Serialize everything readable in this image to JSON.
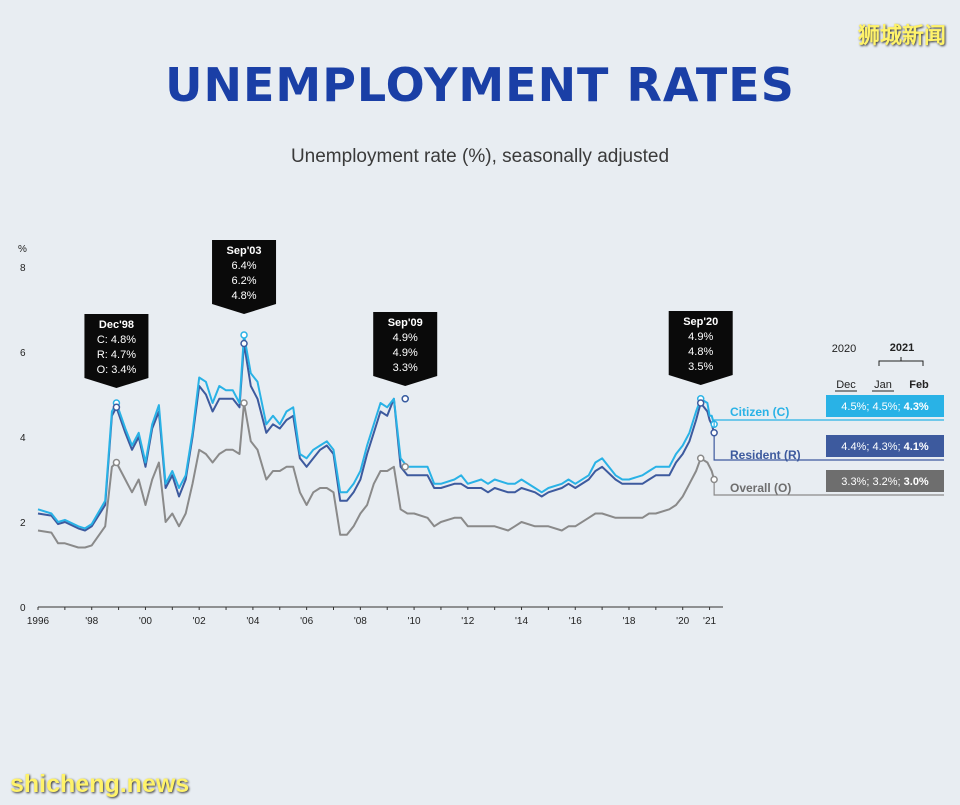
{
  "header": {
    "title": "UNEMPLOYMENT RATES",
    "subtitle": "Unemployment rate (%), seasonally adjusted",
    "watermark_top": "狮城新闻",
    "watermark_bottom": "shicheng.news"
  },
  "colors": {
    "citizen": "#29b2e6",
    "resident": "#3d5a9e",
    "overall": "#8a8a8a",
    "callout_bg": "#0a0a0a",
    "title": "#1a3fa6",
    "background": "#e8edf2"
  },
  "chart_data": {
    "type": "line",
    "title": "Unemployment rate (%), seasonally adjusted",
    "ylabel": "%",
    "ylim": [
      0,
      8
    ],
    "yticks": [
      0,
      2,
      4,
      6,
      8
    ],
    "xlim": [
      1996,
      2021.5
    ],
    "xticks": [
      {
        "value": 1996,
        "label": "1996"
      },
      {
        "value": 1998,
        "label": "'98"
      },
      {
        "value": 2000,
        "label": "'00"
      },
      {
        "value": 2002,
        "label": "'02"
      },
      {
        "value": 2004,
        "label": "'04"
      },
      {
        "value": 2006,
        "label": "'06"
      },
      {
        "value": 2008,
        "label": "'08"
      },
      {
        "value": 2010,
        "label": "'10"
      },
      {
        "value": 2012,
        "label": "'12"
      },
      {
        "value": 2014,
        "label": "'14"
      },
      {
        "value": 2016,
        "label": "'16"
      },
      {
        "value": 2018,
        "label": "'18"
      },
      {
        "value": 2020,
        "label": "'20"
      },
      {
        "value": 2021,
        "label": "'21"
      }
    ],
    "series": [
      {
        "name": "Citizen (C)",
        "color": "#29b2e6",
        "label_values": "4.5%; 4.5%; 4.3%",
        "points": [
          [
            1996,
            2.3
          ],
          [
            1996.5,
            2.2
          ],
          [
            1996.75,
            2.0
          ],
          [
            1997,
            2.05
          ],
          [
            1997.5,
            1.9
          ],
          [
            1997.75,
            1.85
          ],
          [
            1998,
            1.95
          ],
          [
            1998.5,
            2.5
          ],
          [
            1998.75,
            4.6
          ],
          [
            1998.92,
            4.8
          ],
          [
            1999.25,
            4.2
          ],
          [
            1999.5,
            3.8
          ],
          [
            1999.75,
            4.1
          ],
          [
            2000,
            3.4
          ],
          [
            2000.25,
            4.3
          ],
          [
            2000.5,
            4.75
          ],
          [
            2000.75,
            2.9
          ],
          [
            2001,
            3.2
          ],
          [
            2001.25,
            2.8
          ],
          [
            2001.5,
            3.1
          ],
          [
            2001.75,
            4.1
          ],
          [
            2002,
            5.4
          ],
          [
            2002.25,
            5.3
          ],
          [
            2002.5,
            4.8
          ],
          [
            2002.75,
            5.2
          ],
          [
            2003,
            5.1
          ],
          [
            2003.25,
            5.1
          ],
          [
            2003.5,
            4.8
          ],
          [
            2003.67,
            6.4
          ],
          [
            2003.92,
            5.5
          ],
          [
            2004.17,
            5.3
          ],
          [
            2004.5,
            4.3
          ],
          [
            2004.75,
            4.5
          ],
          [
            2005,
            4.3
          ],
          [
            2005.25,
            4.6
          ],
          [
            2005.5,
            4.7
          ],
          [
            2005.75,
            3.6
          ],
          [
            2006,
            3.5
          ],
          [
            2006.25,
            3.7
          ],
          [
            2006.5,
            3.8
          ],
          [
            2006.75,
            3.9
          ],
          [
            2007,
            3.7
          ],
          [
            2007.25,
            2.7
          ],
          [
            2007.5,
            2.7
          ],
          [
            2007.75,
            2.9
          ],
          [
            2008,
            3.2
          ],
          [
            2008.25,
            3.8
          ],
          [
            2008.5,
            4.3
          ],
          [
            2008.75,
            4.8
          ],
          [
            2009,
            4.7
          ],
          [
            2009.25,
            4.9
          ],
          [
            2009.5,
            3.5
          ],
          [
            2009.75,
            3.3
          ],
          [
            2010,
            3.3
          ],
          [
            2010.5,
            3.3
          ],
          [
            2010.75,
            2.9
          ],
          [
            2011,
            2.9
          ],
          [
            2011.5,
            3.0
          ],
          [
            2011.75,
            3.1
          ],
          [
            2012,
            2.9
          ],
          [
            2012.5,
            3.0
          ],
          [
            2012.75,
            2.9
          ],
          [
            2013,
            3.0
          ],
          [
            2013.5,
            2.9
          ],
          [
            2013.75,
            2.9
          ],
          [
            2014,
            3.0
          ],
          [
            2014.5,
            2.8
          ],
          [
            2014.75,
            2.7
          ],
          [
            2015,
            2.8
          ],
          [
            2015.5,
            2.9
          ],
          [
            2015.75,
            3.0
          ],
          [
            2016,
            2.9
          ],
          [
            2016.5,
            3.1
          ],
          [
            2016.75,
            3.4
          ],
          [
            2017,
            3.5
          ],
          [
            2017.5,
            3.1
          ],
          [
            2017.75,
            3.0
          ],
          [
            2018,
            3.0
          ],
          [
            2018.5,
            3.1
          ],
          [
            2018.75,
            3.2
          ],
          [
            2019,
            3.3
          ],
          [
            2019.5,
            3.3
          ],
          [
            2019.75,
            3.6
          ],
          [
            2020,
            3.8
          ],
          [
            2020.25,
            4.1
          ],
          [
            2020.5,
            4.6
          ],
          [
            2020.67,
            4.9
          ],
          [
            2020.92,
            4.8
          ],
          [
            2021.0,
            4.5
          ],
          [
            2021.08,
            4.5
          ],
          [
            2021.17,
            4.3
          ]
        ]
      },
      {
        "name": "Resident (R)",
        "color": "#3d5a9e",
        "label_values": "4.4%; 4.3%; 4.1%",
        "points": [
          [
            1996,
            2.2
          ],
          [
            1996.5,
            2.15
          ],
          [
            1996.75,
            1.95
          ],
          [
            1997,
            2.0
          ],
          [
            1997.5,
            1.85
          ],
          [
            1997.75,
            1.8
          ],
          [
            1998,
            1.9
          ],
          [
            1998.5,
            2.4
          ],
          [
            1998.75,
            4.5
          ],
          [
            1998.92,
            4.7
          ],
          [
            1999.25,
            4.1
          ],
          [
            1999.5,
            3.7
          ],
          [
            1999.75,
            4.0
          ],
          [
            2000,
            3.3
          ],
          [
            2000.25,
            4.2
          ],
          [
            2000.5,
            4.6
          ],
          [
            2000.75,
            2.8
          ],
          [
            2001,
            3.1
          ],
          [
            2001.25,
            2.6
          ],
          [
            2001.5,
            3.0
          ],
          [
            2001.75,
            4.0
          ],
          [
            2002,
            5.2
          ],
          [
            2002.25,
            5.0
          ],
          [
            2002.5,
            4.6
          ],
          [
            2002.75,
            4.9
          ],
          [
            2003,
            4.9
          ],
          [
            2003.25,
            4.9
          ],
          [
            2003.5,
            4.7
          ],
          [
            2003.67,
            6.2
          ],
          [
            2003.92,
            5.2
          ],
          [
            2004.17,
            4.9
          ],
          [
            2004.5,
            4.1
          ],
          [
            2004.75,
            4.3
          ],
          [
            2005,
            4.2
          ],
          [
            2005.25,
            4.4
          ],
          [
            2005.5,
            4.5
          ],
          [
            2005.75,
            3.5
          ],
          [
            2006,
            3.3
          ],
          [
            2006.25,
            3.5
          ],
          [
            2006.5,
            3.7
          ],
          [
            2006.75,
            3.8
          ],
          [
            2007,
            3.6
          ],
          [
            2007.25,
            2.5
          ],
          [
            2007.5,
            2.5
          ],
          [
            2007.75,
            2.7
          ],
          [
            2008,
            3.0
          ],
          [
            2008.25,
            3.6
          ],
          [
            2008.5,
            4.1
          ],
          [
            2008.75,
            4.6
          ],
          [
            2009,
            4.5
          ],
          [
            2009.25,
            4.9
          ],
          [
            2009.5,
            3.3
          ],
          [
            2009.75,
            3.1
          ],
          [
            2010,
            3.1
          ],
          [
            2010.5,
            3.1
          ],
          [
            2010.75,
            2.8
          ],
          [
            2011,
            2.8
          ],
          [
            2011.5,
            2.9
          ],
          [
            2011.75,
            2.9
          ],
          [
            2012,
            2.8
          ],
          [
            2012.5,
            2.8
          ],
          [
            2012.75,
            2.7
          ],
          [
            2013,
            2.8
          ],
          [
            2013.5,
            2.7
          ],
          [
            2013.75,
            2.7
          ],
          [
            2014,
            2.8
          ],
          [
            2014.5,
            2.7
          ],
          [
            2014.75,
            2.6
          ],
          [
            2015,
            2.7
          ],
          [
            2015.5,
            2.8
          ],
          [
            2015.75,
            2.9
          ],
          [
            2016,
            2.8
          ],
          [
            2016.5,
            3.0
          ],
          [
            2016.75,
            3.2
          ],
          [
            2017,
            3.3
          ],
          [
            2017.5,
            3.0
          ],
          [
            2017.75,
            2.9
          ],
          [
            2018,
            2.9
          ],
          [
            2018.5,
            2.9
          ],
          [
            2018.75,
            3.0
          ],
          [
            2019,
            3.1
          ],
          [
            2019.5,
            3.1
          ],
          [
            2019.75,
            3.4
          ],
          [
            2020,
            3.6
          ],
          [
            2020.25,
            3.9
          ],
          [
            2020.5,
            4.4
          ],
          [
            2020.67,
            4.8
          ],
          [
            2020.92,
            4.6
          ],
          [
            2021.0,
            4.4
          ],
          [
            2021.08,
            4.3
          ],
          [
            2021.17,
            4.1
          ]
        ]
      },
      {
        "name": "Overall (O)",
        "color": "#8a8a8a",
        "label_values": "3.3%; 3.2%; 3.0%",
        "points": [
          [
            1996,
            1.8
          ],
          [
            1996.5,
            1.75
          ],
          [
            1996.75,
            1.5
          ],
          [
            1997,
            1.5
          ],
          [
            1997.5,
            1.4
          ],
          [
            1997.75,
            1.4
          ],
          [
            1998,
            1.45
          ],
          [
            1998.5,
            1.9
          ],
          [
            1998.75,
            3.3
          ],
          [
            1998.92,
            3.4
          ],
          [
            1999.25,
            3.0
          ],
          [
            1999.5,
            2.7
          ],
          [
            1999.75,
            3.0
          ],
          [
            2000,
            2.4
          ],
          [
            2000.25,
            3.0
          ],
          [
            2000.5,
            3.4
          ],
          [
            2000.75,
            2.0
          ],
          [
            2001,
            2.2
          ],
          [
            2001.25,
            1.9
          ],
          [
            2001.5,
            2.2
          ],
          [
            2001.75,
            2.9
          ],
          [
            2002,
            3.7
          ],
          [
            2002.25,
            3.6
          ],
          [
            2002.5,
            3.4
          ],
          [
            2002.75,
            3.6
          ],
          [
            2003,
            3.7
          ],
          [
            2003.25,
            3.7
          ],
          [
            2003.5,
            3.6
          ],
          [
            2003.67,
            4.8
          ],
          [
            2003.92,
            3.9
          ],
          [
            2004.17,
            3.7
          ],
          [
            2004.5,
            3.0
          ],
          [
            2004.75,
            3.2
          ],
          [
            2005,
            3.2
          ],
          [
            2005.25,
            3.3
          ],
          [
            2005.5,
            3.3
          ],
          [
            2005.75,
            2.7
          ],
          [
            2006,
            2.4
          ],
          [
            2006.25,
            2.7
          ],
          [
            2006.5,
            2.8
          ],
          [
            2006.75,
            2.8
          ],
          [
            2007,
            2.7
          ],
          [
            2007.25,
            1.7
          ],
          [
            2007.5,
            1.7
          ],
          [
            2007.75,
            1.9
          ],
          [
            2008,
            2.2
          ],
          [
            2008.25,
            2.4
          ],
          [
            2008.5,
            2.9
          ],
          [
            2008.75,
            3.2
          ],
          [
            2009,
            3.2
          ],
          [
            2009.25,
            3.3
          ],
          [
            2009.5,
            2.3
          ],
          [
            2009.75,
            2.2
          ],
          [
            2010,
            2.2
          ],
          [
            2010.5,
            2.1
          ],
          [
            2010.75,
            1.9
          ],
          [
            2011,
            2.0
          ],
          [
            2011.5,
            2.1
          ],
          [
            2011.75,
            2.1
          ],
          [
            2012,
            1.9
          ],
          [
            2012.5,
            1.9
          ],
          [
            2012.75,
            1.9
          ],
          [
            2013,
            1.9
          ],
          [
            2013.5,
            1.8
          ],
          [
            2013.75,
            1.9
          ],
          [
            2014,
            2.0
          ],
          [
            2014.5,
            1.9
          ],
          [
            2014.75,
            1.9
          ],
          [
            2015,
            1.9
          ],
          [
            2015.5,
            1.8
          ],
          [
            2015.75,
            1.9
          ],
          [
            2016,
            1.9
          ],
          [
            2016.5,
            2.1
          ],
          [
            2016.75,
            2.2
          ],
          [
            2017,
            2.2
          ],
          [
            2017.5,
            2.1
          ],
          [
            2017.75,
            2.1
          ],
          [
            2018,
            2.1
          ],
          [
            2018.5,
            2.1
          ],
          [
            2018.75,
            2.2
          ],
          [
            2019,
            2.2
          ],
          [
            2019.5,
            2.3
          ],
          [
            2019.75,
            2.4
          ],
          [
            2020,
            2.6
          ],
          [
            2020.25,
            2.9
          ],
          [
            2020.5,
            3.2
          ],
          [
            2020.67,
            3.5
          ],
          [
            2020.92,
            3.4
          ],
          [
            2021.0,
            3.3
          ],
          [
            2021.08,
            3.2
          ],
          [
            2021.17,
            3.0
          ]
        ]
      }
    ],
    "annotations": [
      {
        "x": 1998.92,
        "title": "Dec'98",
        "lines": [
          "C: 4.8%",
          "R: 4.7%",
          "O: 3.4%"
        ],
        "markers": [
          4.8,
          4.7,
          3.4
        ]
      },
      {
        "x": 2003.67,
        "title": "Sep'03",
        "lines": [
          "6.4%",
          "6.2%",
          "4.8%"
        ],
        "markers": [
          6.4,
          6.2,
          4.8
        ]
      },
      {
        "x": 2009.67,
        "title": "Sep'09",
        "lines": [
          "4.9%",
          "4.9%",
          "3.3%"
        ],
        "markers": [
          4.9,
          4.9,
          3.3
        ]
      },
      {
        "x": 2020.67,
        "title": "Sep'20",
        "lines": [
          "4.9%",
          "4.8%",
          "3.5%"
        ],
        "markers": [
          4.9,
          4.8,
          3.5
        ]
      }
    ],
    "legend_table": {
      "year_2020": "2020",
      "year_2021": "2021",
      "col_dec": "Dec",
      "col_jan": "Jan",
      "col_feb": "Feb"
    }
  }
}
